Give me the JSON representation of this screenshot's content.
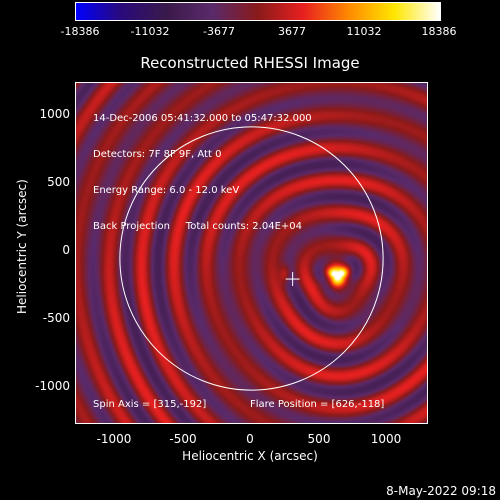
{
  "colorbar": {
    "ticks": [
      "-18386",
      "-11032",
      "-3677",
      "3677",
      "11032",
      "18386"
    ],
    "colormap": [
      "#0000ff",
      "#2a0a7a",
      "#3a1a4a",
      "#5a2a6a",
      "#8a1a1a",
      "#e82020",
      "#ff8a00",
      "#ffe600",
      "#ffffff"
    ]
  },
  "title": "Reconstructed RHESSI Image",
  "info_lines": [
    "14-Dec-2006 05:41:32.000 to 05:47:32.000",
    "Detectors: 7F 8F 9F, Att 0",
    "Energy Range: 6.0 - 12.0 keV",
    "Back Projection     Total counts: 2.04E+04"
  ],
  "spin_axis": "Spin Axis = [315,-192]",
  "flare_position": "Flare Position = [626,-118]",
  "x_axis": {
    "label": "Heliocentric X (arcsec)",
    "ticks": [
      "-1000",
      "-500",
      "0",
      "500",
      "1000"
    ]
  },
  "y_axis": {
    "label": "Heliocentric Y (arcsec)",
    "ticks": [
      "1000",
      "500",
      "0",
      "-500",
      "-1000"
    ]
  },
  "timestamp": "8-May-2022 09:18",
  "image": {
    "x_range": [
      -1280,
      1280
    ],
    "y_range": [
      -1200,
      1280
    ],
    "flare_x": 626,
    "flare_y": -118,
    "marker_x": 300,
    "marker_y": -150,
    "limb_radius": 960
  }
}
